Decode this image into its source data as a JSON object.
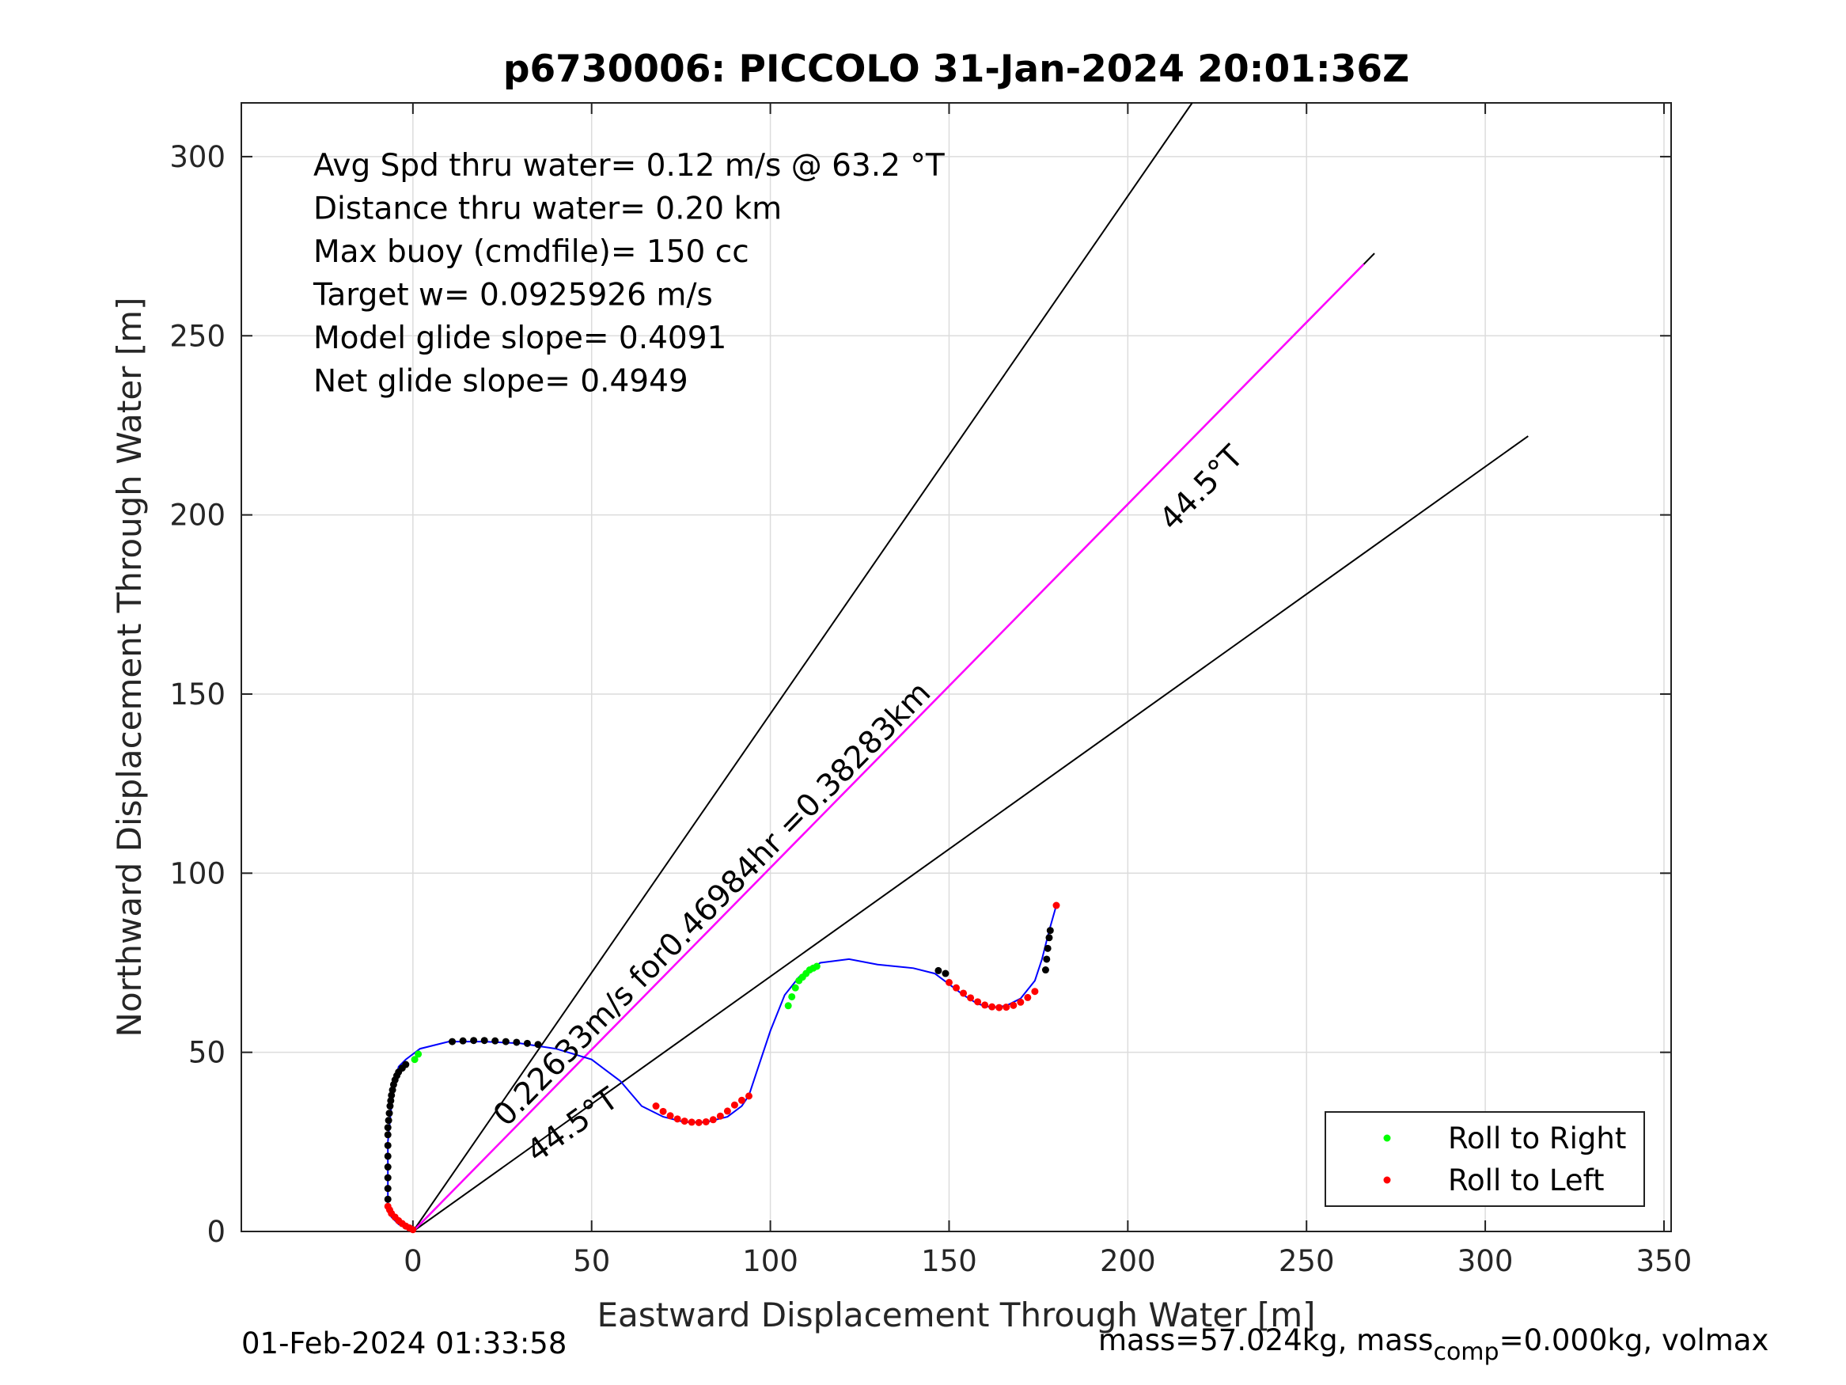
{
  "chart_data": {
    "type": "scatter",
    "title": "p6730006: PICCOLO 31-Jan-2024 20:01:36Z",
    "xlabel": "Eastward Displacement Through Water [m]",
    "ylabel": "Northward Displacement Through Water [m]",
    "xlim": [
      -48,
      352
    ],
    "ylim": [
      0,
      315
    ],
    "xticks": [
      0,
      50,
      100,
      150,
      200,
      250,
      300,
      350
    ],
    "yticks": [
      0,
      50,
      100,
      150,
      200,
      250,
      300
    ],
    "grid": true,
    "annotations": [
      "Avg Spd thru water=  0.12 m/s @  63.2 °T",
      "Distance thru water=  0.20 km",
      "Max buoy (cmdfile)= 150 cc",
      "Target w= 0.0925926 m/s",
      "Model glide slope= 0.4091",
      "Net glide slope= 0.4949"
    ],
    "heading_lines": [
      {
        "label": "",
        "x": [
          0,
          218
        ],
        "y": [
          0,
          315
        ]
      },
      {
        "label": "44.5°T",
        "x": [
          0,
          269
        ],
        "y": [
          0,
          273
        ]
      },
      {
        "label": "44.5°T",
        "x": [
          0,
          312
        ],
        "y": [
          0,
          222
        ]
      }
    ],
    "target_line": {
      "label": "0.22633m/s for0.46984hr =0.38283km",
      "x": [
        0,
        266
      ],
      "y": [
        0,
        270
      ]
    },
    "track": {
      "x": [
        0,
        -2,
        -4,
        -6,
        -7,
        -7,
        -7,
        -6,
        -5,
        -4,
        -2,
        2,
        10,
        20,
        30,
        40,
        50,
        58,
        64,
        70,
        76,
        82,
        88,
        92,
        94,
        96,
        100,
        104,
        108,
        114,
        122,
        130,
        140,
        146,
        150,
        154,
        158,
        162,
        166,
        170,
        174,
        176,
        178,
        180
      ],
      "y": [
        0,
        1,
        2,
        4,
        8,
        15,
        25,
        35,
        42,
        46,
        48,
        51,
        53,
        53,
        52.5,
        51,
        48,
        42,
        35,
        32,
        30.5,
        30.5,
        32,
        35,
        38,
        44,
        56,
        66,
        71,
        75,
        76,
        74.5,
        73.5,
        72,
        69,
        66,
        63.5,
        62.5,
        63,
        65,
        70,
        76,
        84,
        91
      ]
    },
    "series": [
      {
        "name": "Roll to Right",
        "color": "#00ff00",
        "x": [
          0.5,
          1.5,
          105,
          106,
          107,
          108,
          109,
          110,
          111,
          112,
          113
        ],
        "y": [
          48,
          49.5,
          63,
          65.5,
          68,
          70,
          71,
          72,
          73,
          73.5,
          74
        ]
      },
      {
        "name": "Roll to Left",
        "color": "#ff0000",
        "x": [
          0,
          -1,
          -2,
          -3,
          -4,
          -5,
          -6,
          -6.5,
          -7,
          68,
          70,
          72,
          74,
          76,
          78,
          80,
          82,
          84,
          86,
          88,
          90,
          92,
          94,
          150,
          152,
          154,
          156,
          158,
          160,
          162,
          164,
          166,
          168,
          170,
          172,
          174,
          180
        ],
        "y": [
          0.5,
          1,
          1.5,
          2.2,
          3,
          4,
          5,
          6,
          7,
          35,
          33.5,
          32.3,
          31.4,
          30.8,
          30.5,
          30.4,
          30.6,
          31.2,
          32.2,
          33.6,
          35.3,
          36.6,
          37.8,
          69.5,
          68,
          66.5,
          65.2,
          64.1,
          63.2,
          62.7,
          62.5,
          62.6,
          63.1,
          64,
          65.3,
          67,
          91
        ]
      }
    ],
    "logged_points": {
      "x": [
        -7,
        -7,
        -7,
        -7,
        -7,
        -7,
        -7,
        -7,
        -6.8,
        -6.6,
        -6.4,
        -6.2,
        -6,
        -5.7,
        -5.4,
        -5,
        -4.5,
        -4,
        -3,
        -2,
        11,
        14,
        17,
        20,
        23,
        26,
        29,
        32,
        35,
        147,
        149,
        177,
        177.3,
        177.6,
        178,
        178.3
      ],
      "y": [
        9,
        12,
        15,
        18,
        21,
        24,
        27,
        29,
        31,
        33,
        35,
        36.5,
        38,
        39.5,
        41,
        42.3,
        43.5,
        44.5,
        45.6,
        46.6,
        53,
        53.2,
        53.3,
        53.3,
        53.2,
        53,
        52.8,
        52.5,
        52.2,
        72.8,
        72,
        73,
        76,
        79,
        82,
        84
      ]
    },
    "legend": {
      "position": "bottom-right",
      "entries": [
        "Roll to Right",
        "Roll to Left"
      ]
    }
  },
  "footer": {
    "timestamp": "01-Feb-2024 01:33:58",
    "mass_prefix": "mass=57.024kg, mass",
    "mass_sub": "comp",
    "mass_suffix": "=0.000kg, volmax"
  }
}
